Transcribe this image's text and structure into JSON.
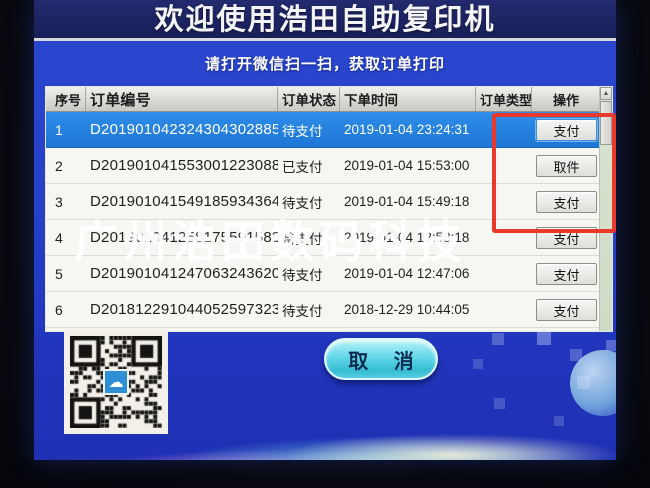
{
  "title": "欢迎使用浩田自助复印机",
  "subtitle": "请打开微信扫一扫，获取订单打印",
  "watermark": "广州浩田数码科技",
  "cancel_button": "取 消",
  "icons": {
    "scroll_up": "▲",
    "cloud_logo": "☁"
  },
  "colors": {
    "title_bar_navy": "#1b2162",
    "screen_blue": "#2640c8",
    "selected_row_blue": "#2381dd",
    "highlight_red": "#e8392b",
    "cancel_cyan": "#55cede",
    "table_bg": "#f4f4f0"
  },
  "table": {
    "headers": [
      "序号",
      "订单编号",
      "订单状态",
      "下单时间",
      "订单类型",
      "操作"
    ],
    "rows": [
      {
        "no": "1",
        "order_id": "D201901042324304302885",
        "status": "待支付",
        "time": "2019-01-04 23:24:31",
        "type": "",
        "action": "支付",
        "selected": true
      },
      {
        "no": "2",
        "order_id": "D201901041553001223088",
        "status": "已支付",
        "time": "2019-01-04 15:53:00",
        "type": "",
        "action": "取件",
        "selected": false
      },
      {
        "no": "3",
        "order_id": "D201901041549185934364",
        "status": "待支付",
        "time": "2019-01-04 15:49:18",
        "type": "",
        "action": "支付",
        "selected": false
      },
      {
        "no": "4",
        "order_id": "D201901041258175591583",
        "status": "待支付",
        "time": "2019-01-04 12:58:18",
        "type": "",
        "action": "支付",
        "selected": false
      },
      {
        "no": "5",
        "order_id": "D201901041247063243620",
        "status": "待支付",
        "time": "2019-01-04 12:47:06",
        "type": "",
        "action": "支付",
        "selected": false
      },
      {
        "no": "6",
        "order_id": "D201812291044052597323",
        "status": "待支付",
        "time": "2018-12-29 10:44:05",
        "type": "",
        "action": "支付",
        "selected": false
      }
    ]
  }
}
